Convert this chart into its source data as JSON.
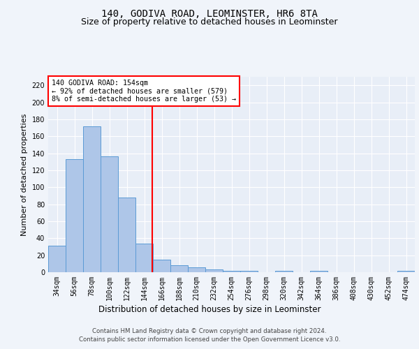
{
  "title": "140, GODIVA ROAD, LEOMINSTER, HR6 8TA",
  "subtitle": "Size of property relative to detached houses in Leominster",
  "xlabel": "Distribution of detached houses by size in Leominster",
  "ylabel": "Number of detached properties",
  "categories": [
    "34sqm",
    "56sqm",
    "78sqm",
    "100sqm",
    "122sqm",
    "144sqm",
    "166sqm",
    "188sqm",
    "210sqm",
    "232sqm",
    "254sqm",
    "276sqm",
    "298sqm",
    "320sqm",
    "342sqm",
    "364sqm",
    "386sqm",
    "408sqm",
    "430sqm",
    "452sqm",
    "474sqm"
  ],
  "values": [
    31,
    133,
    172,
    136,
    88,
    34,
    15,
    8,
    6,
    3,
    2,
    2,
    0,
    2,
    0,
    2,
    0,
    0,
    0,
    0,
    2
  ],
  "bar_color": "#aec6e8",
  "bar_edge_color": "#5b9bd5",
  "annotation_line1": "140 GODIVA ROAD: 154sqm",
  "annotation_line2": "← 92% of detached houses are smaller (579)",
  "annotation_line3": "8% of semi-detached houses are larger (53) →",
  "annotation_box_color": "white",
  "annotation_box_edge_color": "red",
  "vline_color": "red",
  "ylim": [
    0,
    230
  ],
  "yticks": [
    0,
    20,
    40,
    60,
    80,
    100,
    120,
    140,
    160,
    180,
    200,
    220
  ],
  "footer_line1": "Contains HM Land Registry data © Crown copyright and database right 2024.",
  "footer_line2": "Contains public sector information licensed under the Open Government Licence v3.0.",
  "bg_color": "#e8eef7",
  "fig_bg_color": "#f0f4fa",
  "title_fontsize": 10,
  "subtitle_fontsize": 9,
  "tick_fontsize": 7,
  "ylabel_fontsize": 8,
  "xlabel_fontsize": 8.5,
  "footer_fontsize": 6.2
}
